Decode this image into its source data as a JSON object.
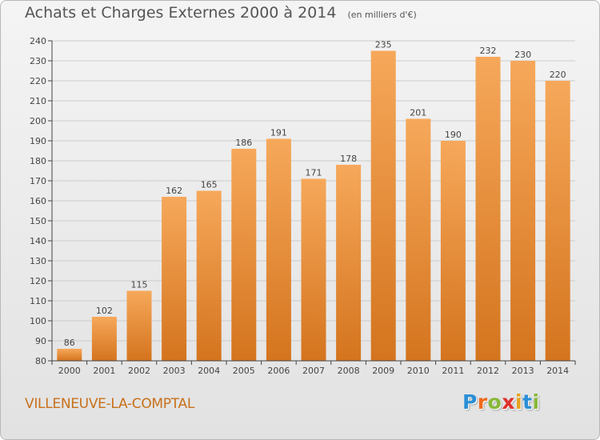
{
  "header": {
    "title": "Achats et Charges Externes 2000 à 2014",
    "subtitle": "(en milliers d'€)"
  },
  "footer": {
    "place": "VILLENEUVE-LA-COMPTAL",
    "logo": {
      "text": "Proxiti",
      "letter_colors": [
        "#2a8fd6",
        "#ef6a1a",
        "#88b83a",
        "#e0302a",
        "#e8a21a",
        "#2a8fd6",
        "#88b83a"
      ]
    }
  },
  "colors": {
    "bar_top": "#f6a85a",
    "bar_bottom": "#d4741e",
    "grid": "#cccccc",
    "axis": "#444444",
    "text": "#444444"
  },
  "chart_data": {
    "type": "bar",
    "title": "Achats et Charges Externes 2000 à 2014",
    "subtitle": "(en milliers d'€)",
    "xlabel": "",
    "ylabel": "",
    "categories": [
      "2000",
      "2001",
      "2002",
      "2003",
      "2004",
      "2005",
      "2006",
      "2007",
      "2008",
      "2009",
      "2010",
      "2011",
      "2012",
      "2013",
      "2014"
    ],
    "values": [
      86,
      102,
      115,
      162,
      165,
      186,
      191,
      171,
      178,
      235,
      201,
      190,
      232,
      230,
      220
    ],
    "data_labels": [
      "86",
      "102",
      "115",
      "162",
      "165",
      "186",
      "191",
      "171",
      "178",
      "235",
      "201",
      "190",
      "232",
      "230",
      "220"
    ],
    "ylim": [
      80,
      240
    ],
    "yticks": [
      80,
      90,
      100,
      110,
      120,
      130,
      140,
      150,
      160,
      170,
      180,
      190,
      200,
      210,
      220,
      230,
      240
    ],
    "grid": true,
    "legend": "none"
  }
}
